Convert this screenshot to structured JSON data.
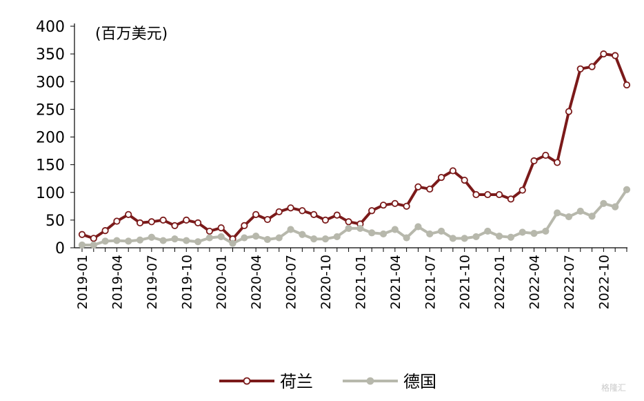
{
  "chart_data": {
    "type": "line",
    "unit_label": "(百万美元)",
    "ylim": [
      0,
      400
    ],
    "y_ticks": [
      0,
      50,
      100,
      150,
      200,
      250,
      300,
      350,
      400
    ],
    "x": [
      "2019-01",
      "2019-02",
      "2019-03",
      "2019-04",
      "2019-05",
      "2019-06",
      "2019-07",
      "2019-08",
      "2019-09",
      "2019-10",
      "2019-11",
      "2019-12",
      "2020-01",
      "2020-02",
      "2020-03",
      "2020-04",
      "2020-05",
      "2020-06",
      "2020-07",
      "2020-08",
      "2020-09",
      "2020-10",
      "2020-11",
      "2020-12",
      "2021-01",
      "2021-02",
      "2021-03",
      "2021-04",
      "2021-05",
      "2021-06",
      "2021-07",
      "2021-08",
      "2021-09",
      "2021-10",
      "2021-11",
      "2021-12",
      "2022-01",
      "2022-02",
      "2022-03",
      "2022-04",
      "2022-05",
      "2022-06",
      "2022-07",
      "2022-08",
      "2022-09",
      "2022-10",
      "2022-11",
      "2022-12"
    ],
    "x_tick_labels": [
      "2019-01",
      "2019-04",
      "2019-07",
      "2019-10",
      "2020-01",
      "2020-04",
      "2020-07",
      "2020-10",
      "2021-01",
      "2021-04",
      "2021-07",
      "2021-10",
      "2022-01",
      "2022-04",
      "2022-07",
      "2022-10"
    ],
    "grid": false,
    "legend_position": "bottom",
    "series": [
      {
        "name": "荷兰",
        "color": "#7b1a1a",
        "values": [
          24,
          17,
          31,
          48,
          60,
          45,
          47,
          50,
          40,
          50,
          45,
          30,
          36,
          16,
          40,
          60,
          51,
          65,
          72,
          67,
          60,
          50,
          59,
          47,
          43,
          67,
          77,
          80,
          75,
          110,
          106,
          127,
          139,
          122,
          96,
          96,
          96,
          88,
          104,
          157,
          167,
          154,
          246,
          323,
          327,
          350,
          347,
          294
        ]
      },
      {
        "name": "德国",
        "color": "#b7b8ac",
        "values": [
          5,
          5,
          12,
          13,
          12,
          14,
          19,
          13,
          16,
          13,
          11,
          18,
          20,
          8,
          18,
          21,
          15,
          18,
          33,
          24,
          16,
          16,
          20,
          35,
          35,
          27,
          25,
          33,
          18,
          38,
          25,
          30,
          17,
          17,
          20,
          30,
          21,
          19,
          28,
          26,
          30,
          63,
          56,
          66,
          57,
          80,
          74,
          105
        ]
      }
    ]
  },
  "watermark": "格隆汇"
}
